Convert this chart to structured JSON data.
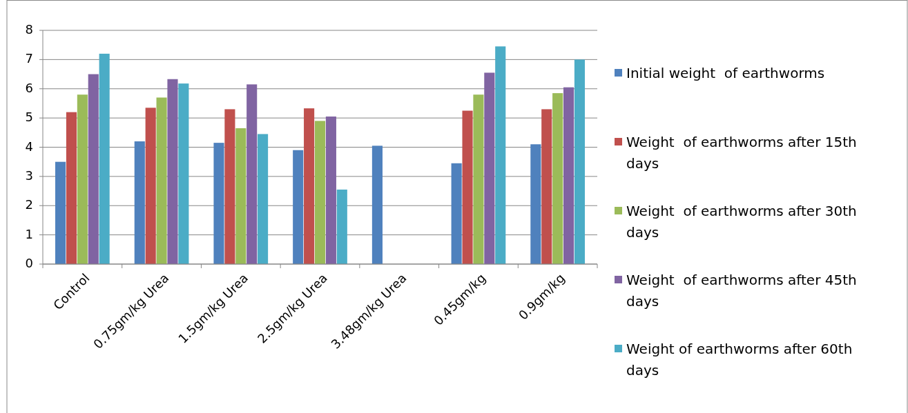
{
  "chart_data": {
    "type": "bar",
    "categories": [
      "Control",
      "0.75gm/kg Urea",
      "1.5gm/kg Urea",
      "2.5gm/kg Urea",
      "3.48gm/kg Urea",
      "0.45gm/kg",
      "0.9gm/kg"
    ],
    "series": [
      {
        "name": "Initial weight  of earthworms",
        "color": "#4f81bd",
        "values": [
          3.5,
          4.2,
          4.15,
          3.9,
          4.05,
          3.45,
          4.1
        ]
      },
      {
        "name": "Weight  of earthworms after 15th days",
        "color": "#c0504d",
        "values": [
          5.2,
          5.35,
          5.3,
          5.33,
          null,
          5.25,
          5.3
        ]
      },
      {
        "name": "Weight  of earthworms after 30th days",
        "color": "#9bbb59",
        "values": [
          5.8,
          5.7,
          4.65,
          4.9,
          null,
          5.8,
          5.85
        ]
      },
      {
        "name": "Weight  of earthworms after 45th days",
        "color": "#8064a2",
        "values": [
          6.5,
          6.33,
          6.15,
          5.05,
          null,
          6.55,
          6.05
        ]
      },
      {
        "name": "Weight of earthworms after 60th days",
        "color": "#4bacc6",
        "values": [
          7.2,
          6.18,
          4.45,
          2.55,
          null,
          7.45,
          7.0
        ]
      }
    ],
    "ylim": [
      0,
      8
    ],
    "yticks": [
      0,
      1,
      2,
      3,
      4,
      5,
      6,
      7,
      8
    ],
    "grid": "y",
    "legend": "right"
  }
}
